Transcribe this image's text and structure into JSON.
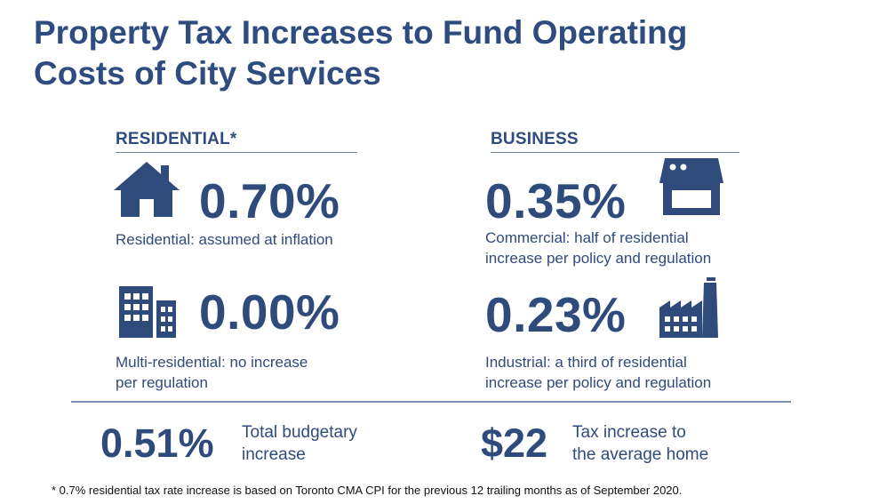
{
  "title_line1": "Property Tax Increases to Fund Operating",
  "title_line2": "Costs of City Services",
  "residential": {
    "heading": "RESIDENTIAL*",
    "items": [
      {
        "icon": "house-icon",
        "value": "0.70%",
        "desc_line1": "Residential: assumed at inflation",
        "desc_line2": ""
      },
      {
        "icon": "apartment-buildings-icon",
        "value": "0.00%",
        "desc_line1": "Multi-residential: no increase",
        "desc_line2": "per regulation"
      }
    ]
  },
  "business": {
    "heading": "BUSINESS",
    "items": [
      {
        "icon": "storefront-icon",
        "value": "0.35%",
        "desc_line1": "Commercial: half of residential",
        "desc_line2": "increase per policy and regulation"
      },
      {
        "icon": "factory-icon",
        "value": "0.23%",
        "desc_line1": "Industrial: a third of residential",
        "desc_line2": "increase per policy and regulation"
      }
    ]
  },
  "summary": {
    "budget_value": "0.51%",
    "budget_label_line1": "Total budgetary",
    "budget_label_line2": "increase",
    "home_value": "$22",
    "home_label_line1": "Tax increase to",
    "home_label_line2": "the average home"
  },
  "footnote": "* 0.7% residential tax rate increase is based on Toronto CMA CPI for the previous 12 trailing months as of September 2020.",
  "colors": {
    "primary": "#2f4b7c",
    "text_dark": "#111111",
    "rule": "#7b8fb0"
  }
}
